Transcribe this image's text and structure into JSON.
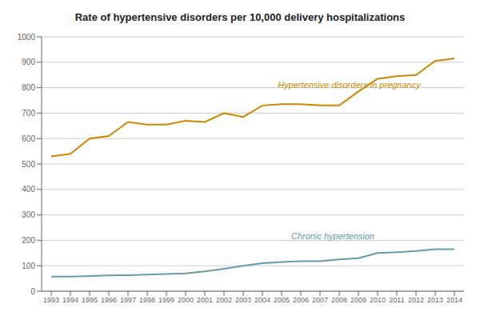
{
  "chart_data": {
    "type": "line",
    "title": "Rate of hypertensive disorders per 10,000 delivery hospitalizations",
    "x": [
      1993,
      1994,
      1995,
      1996,
      1997,
      1998,
      1999,
      2000,
      2001,
      2002,
      2003,
      2004,
      2005,
      2006,
      2007,
      2008,
      2009,
      2010,
      2011,
      2012,
      2013,
      2014
    ],
    "series": [
      {
        "color": "#CC8800",
        "values": [
          530,
          540,
          600,
          610,
          665,
          655,
          655,
          670,
          665,
          700,
          685,
          730,
          735,
          735,
          730,
          730,
          785,
          835,
          845,
          850,
          905,
          915
        ]
      },
      {
        "color": "#6699AA",
        "values": [
          57,
          57,
          60,
          62,
          63,
          65,
          68,
          70,
          78,
          88,
          100,
          110,
          115,
          118,
          118,
          125,
          130,
          150,
          153,
          158,
          165,
          165
        ]
      }
    ],
    "annotations": [
      {
        "text": "Hypertensive disorders in pregnancy",
        "x": 2004.8,
        "y": 790,
        "color": "#CC8800"
      },
      {
        "text": "Chronic hypertension",
        "x": 2005.5,
        "y": 195,
        "color": "#6699AA"
      }
    ],
    "xlim": [
      1992.5,
      2014.5
    ],
    "xticks": [
      1993,
      1994,
      1995,
      1996,
      1997,
      1998,
      1999,
      2000,
      2001,
      2002,
      2003,
      2004,
      2005,
      2006,
      2007,
      2008,
      2009,
      2010,
      2011,
      2012,
      2013,
      2014
    ],
    "ylim": [
      0,
      1000
    ],
    "yticks": [
      0,
      100,
      200,
      300,
      400,
      500,
      600,
      700,
      800,
      900,
      1000
    ],
    "grid": true
  }
}
